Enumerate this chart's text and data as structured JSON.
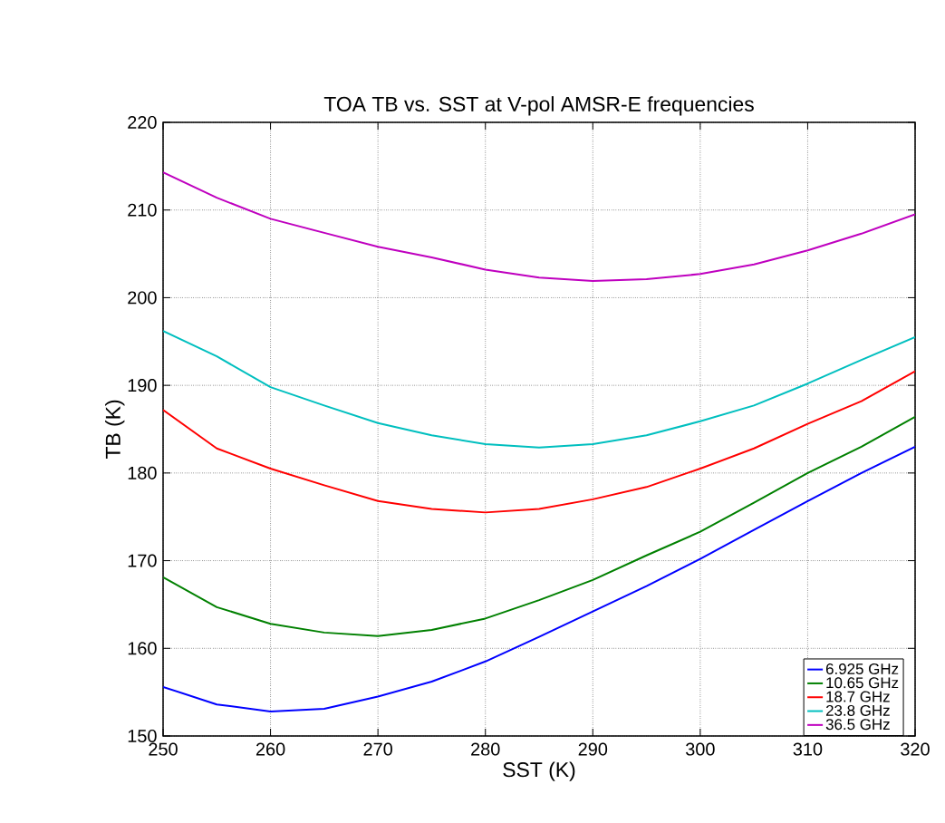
{
  "chart_data": {
    "type": "line",
    "title": "TOA TB vs. SST at V-pol AMSR-E frequencies",
    "xlabel": "SST (K)",
    "ylabel": "TB (K)",
    "x": [
      250,
      255,
      260,
      265,
      270,
      275,
      280,
      285,
      290,
      295,
      300,
      305,
      310,
      315,
      320
    ],
    "xlim": [
      250,
      320
    ],
    "xticks": [
      250,
      260,
      270,
      280,
      290,
      300,
      310,
      320
    ],
    "ylim": [
      150,
      220
    ],
    "yticks": [
      150,
      160,
      170,
      180,
      190,
      200,
      210,
      220
    ],
    "grid": true,
    "legend": "bottom right",
    "line_style": "solid",
    "marker": "none",
    "series": [
      {
        "name": "6.925 GHz",
        "color": "#0000ff",
        "values": [
          155.6,
          153.6,
          152.8,
          153.1,
          154.5,
          156.2,
          158.5,
          161.3,
          164.2,
          167.1,
          170.2,
          173.5,
          176.8,
          180.0,
          183.0
        ]
      },
      {
        "name": "10.65 GHz",
        "color": "#008000",
        "values": [
          168.1,
          164.7,
          162.8,
          161.8,
          161.4,
          162.1,
          163.4,
          165.5,
          167.8,
          170.6,
          173.3,
          176.6,
          180.0,
          183.0,
          186.4
        ]
      },
      {
        "name": "18.7 GHz",
        "color": "#ff0000",
        "values": [
          187.2,
          182.8,
          180.5,
          178.6,
          176.8,
          175.9,
          175.5,
          175.9,
          177.0,
          178.4,
          180.5,
          182.8,
          185.6,
          188.2,
          191.6
        ]
      },
      {
        "name": "23.8 GHz",
        "color": "#00bfbf",
        "values": [
          196.2,
          193.3,
          189.8,
          187.7,
          185.7,
          184.3,
          183.3,
          182.9,
          183.3,
          184.3,
          185.9,
          187.7,
          190.2,
          192.9,
          195.5
        ]
      },
      {
        "name": "36.5 GHz",
        "color": "#bf00bf",
        "values": [
          214.3,
          211.4,
          209.0,
          207.4,
          205.8,
          204.6,
          203.2,
          202.3,
          201.9,
          202.1,
          202.7,
          203.8,
          205.4,
          207.3,
          209.5
        ]
      }
    ]
  }
}
